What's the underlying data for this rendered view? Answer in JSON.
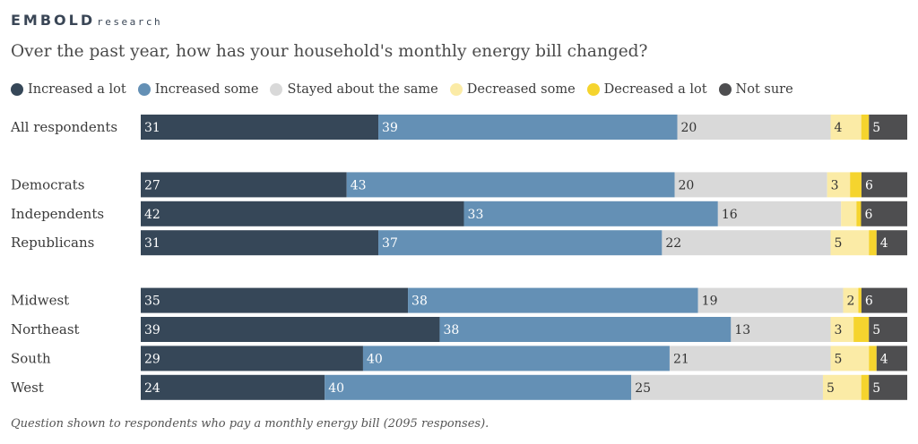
{
  "brand": {
    "main": "EMBOLD",
    "sub": "research"
  },
  "footnote": "Question shown to respondents who pay a monthly energy bill (2095 responses).",
  "chart_data": {
    "type": "bar",
    "orientation": "horizontal",
    "stacked": true,
    "normalized": true,
    "title": "Over the past year, how has your household's monthly energy bill changed?",
    "legend_placement": "top-left",
    "grid": false,
    "categories": [
      "All respondents",
      "Democrats",
      "Independents",
      "Republicans",
      "Midwest",
      "Northeast",
      "South",
      "West"
    ],
    "groups": [
      [
        "All respondents"
      ],
      [
        "Democrats",
        "Independents",
        "Republicans"
      ],
      [
        "Midwest",
        "Northeast",
        "South",
        "West"
      ]
    ],
    "series": [
      {
        "name": "Increased a lot",
        "color": "#364758",
        "label_color": "#ffffff",
        "values": [
          31,
          27,
          42,
          31,
          35,
          39,
          29,
          24
        ]
      },
      {
        "name": "Increased some",
        "color": "#6490b5",
        "label_color": "#ffffff",
        "values": [
          39,
          43,
          33,
          37,
          38,
          38,
          40,
          40
        ]
      },
      {
        "name": "Stayed about the same",
        "color": "#d9d9d9",
        "label_color": "#333333",
        "values": [
          20,
          20,
          16,
          22,
          19,
          13,
          21,
          25
        ]
      },
      {
        "name": "Decreased some",
        "color": "#fbeba6",
        "label_color": "#333333",
        "values": [
          4,
          3,
          null,
          5,
          2,
          3,
          5,
          5
        ]
      },
      {
        "name": "Decreased a lot",
        "color": "#f5d42e",
        "label_color": "#333333",
        "values": [
          null,
          null,
          null,
          null,
          null,
          null,
          null,
          null
        ]
      },
      {
        "name": "Not sure",
        "color": "#4e4e50",
        "label_color": "#ffffff",
        "values": [
          5,
          6,
          6,
          4,
          6,
          5,
          4,
          5
        ]
      }
    ],
    "unlabeled_segment_estimates": {
      "Decreased some": {
        "Independents": 2
      },
      "Decreased a lot": {
        "All respondents": 1,
        "Democrats": 1.5,
        "Independents": 0.6,
        "Republicans": 1,
        "Midwest": 0.4,
        "Northeast": 2,
        "South": 1,
        "West": 1
      }
    }
  }
}
